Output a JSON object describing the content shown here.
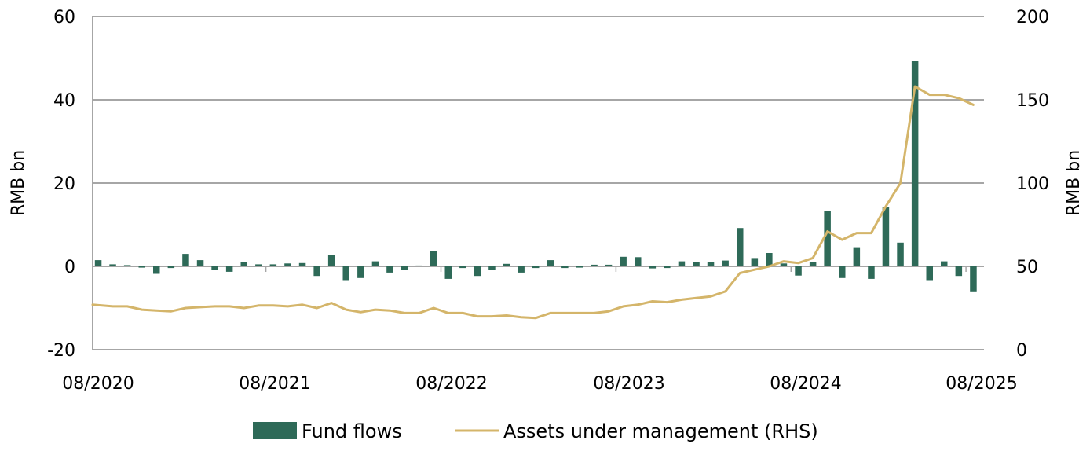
{
  "chart_data": {
    "type": "bar",
    "title": "",
    "xlabel": "",
    "ylabel": "RMB bn",
    "y2label": "RMB bn",
    "ylim": [
      -20,
      60
    ],
    "y2lim": [
      0,
      200
    ],
    "yticks": [
      "60",
      "40",
      "20",
      "0",
      "-20"
    ],
    "y2ticks": [
      "200",
      "150",
      "100",
      "50",
      "0"
    ],
    "x_tick_labels": [
      "08/2020",
      "08/2021",
      "08/2022",
      "08/2023",
      "08/2024",
      "08/2025"
    ],
    "grid": "horizontal",
    "legend_position": "bottom",
    "colors": {
      "bars": "#2e6a58",
      "line": "#d4b56a",
      "grid": "#a6a6a6"
    },
    "series": [
      {
        "name": "Fund flows",
        "type": "bar",
        "axis": "left",
        "values": [
          1.5,
          0.5,
          0.3,
          -0.3,
          -1.8,
          -0.4,
          3.0,
          1.5,
          -0.8,
          -1.3,
          1.0,
          0.5,
          0.5,
          0.7,
          0.8,
          -2.3,
          2.8,
          -3.3,
          -2.8,
          1.2,
          -1.5,
          -0.8,
          0.2,
          3.6,
          -3.0,
          -0.4,
          -2.3,
          -0.8,
          0.6,
          -1.5,
          -0.4,
          1.5,
          -0.4,
          -0.3,
          0.4,
          0.4,
          2.3,
          2.2,
          -0.5,
          -0.4,
          1.2,
          1.0,
          1.0,
          1.4,
          9.2,
          2.0,
          3.2,
          0.7,
          -2.2,
          1.0,
          13.4,
          -2.8,
          4.6,
          -3.0,
          14.2,
          5.7,
          49.3,
          -3.3,
          1.2,
          -2.3,
          -6.0
        ]
      },
      {
        "name": "Assets under management (RHS)",
        "type": "line",
        "axis": "right",
        "values": [
          27,
          26,
          26,
          24,
          23.5,
          23,
          25,
          25.5,
          26,
          26,
          25,
          26.5,
          26.5,
          26,
          27,
          25,
          28,
          24,
          22.5,
          24,
          23.5,
          22,
          22,
          25,
          22,
          22,
          20,
          20,
          20.5,
          19.5,
          19,
          22,
          22,
          22,
          22,
          23,
          26,
          27,
          29,
          28.5,
          30,
          31,
          32,
          35,
          46,
          48,
          50,
          53,
          52,
          55,
          71,
          66,
          70,
          70,
          86,
          100,
          158,
          153,
          153,
          151,
          147
        ]
      }
    ]
  }
}
